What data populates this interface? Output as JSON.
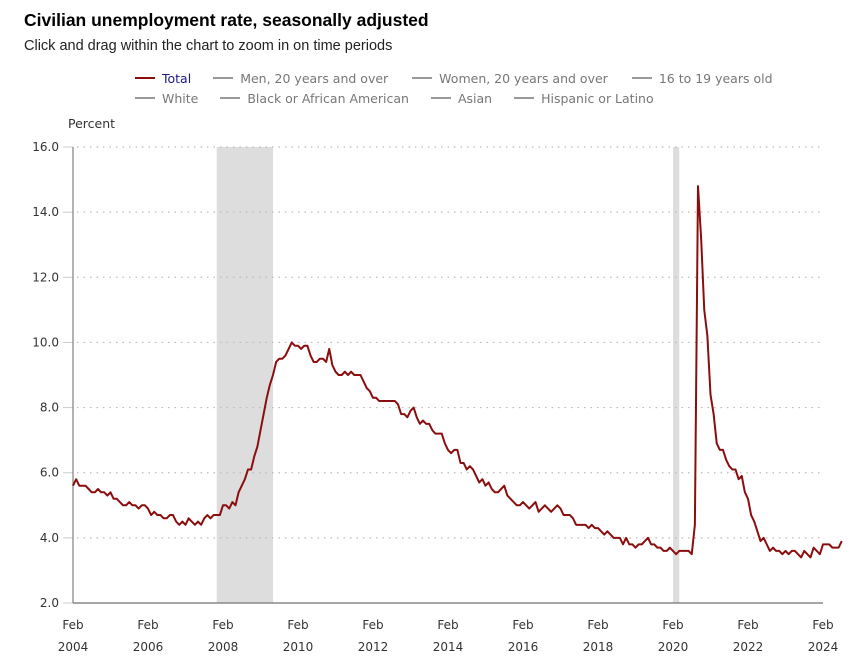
{
  "header": {
    "title": "Civilian unemployment rate, seasonally adjusted",
    "subtitle": "Click and drag within the chart to zoom in on time periods"
  },
  "legend": {
    "rows": [
      [
        {
          "label": "Total",
          "color": "#8b0e0e",
          "active": true
        },
        {
          "label": "Men, 20 years and over",
          "color": "#999999",
          "active": false
        },
        {
          "label": "Women, 20 years and over",
          "color": "#999999",
          "active": false
        },
        {
          "label": "16 to 19 years old",
          "color": "#999999",
          "active": false
        }
      ],
      [
        {
          "label": "White",
          "color": "#999999",
          "active": false
        },
        {
          "label": "Black or African American",
          "color": "#999999",
          "active": false
        },
        {
          "label": "Asian",
          "color": "#999999",
          "active": false
        },
        {
          "label": "Hispanic or Latino",
          "color": "#999999",
          "active": false
        }
      ]
    ]
  },
  "chart_data": {
    "type": "line",
    "title": "Civilian unemployment rate, seasonally adjusted",
    "ylabel": "Percent",
    "xlabel": "",
    "ylim": [
      2.0,
      16.0
    ],
    "yticks": [
      "2.0",
      "4.0",
      "6.0",
      "8.0",
      "10.0",
      "12.0",
      "14.0",
      "16.0"
    ],
    "xlim": [
      "2004-02",
      "2024-02"
    ],
    "xticks": [
      {
        "month": "Feb",
        "year": "2004"
      },
      {
        "month": "Feb",
        "year": "2006"
      },
      {
        "month": "Feb",
        "year": "2008"
      },
      {
        "month": "Feb",
        "year": "2010"
      },
      {
        "month": "Feb",
        "year": "2012"
      },
      {
        "month": "Feb",
        "year": "2014"
      },
      {
        "month": "Feb",
        "year": "2016"
      },
      {
        "month": "Feb",
        "year": "2018"
      },
      {
        "month": "Feb",
        "year": "2020"
      },
      {
        "month": "Feb",
        "year": "2022"
      },
      {
        "month": "Feb",
        "year": "2024"
      }
    ],
    "grid": "horizontal-dotted",
    "recessions": [
      {
        "start": "2007-12",
        "end": "2009-06"
      },
      {
        "start": "2020-02",
        "end": "2020-04"
      }
    ],
    "colors": {
      "line": "#8b0e0e",
      "recession": "#dddddd",
      "grid": "#bbbbbb",
      "axis": "#888888"
    },
    "series": [
      {
        "name": "Total",
        "start": "2004-02",
        "frequency": "monthly",
        "values": [
          5.6,
          5.8,
          5.6,
          5.6,
          5.6,
          5.5,
          5.4,
          5.4,
          5.5,
          5.4,
          5.4,
          5.3,
          5.4,
          5.2,
          5.2,
          5.1,
          5.0,
          5.0,
          5.1,
          5.0,
          5.0,
          4.9,
          5.0,
          5.0,
          4.9,
          4.7,
          4.8,
          4.7,
          4.7,
          4.6,
          4.6,
          4.7,
          4.7,
          4.5,
          4.4,
          4.5,
          4.4,
          4.6,
          4.5,
          4.4,
          4.5,
          4.4,
          4.6,
          4.7,
          4.6,
          4.7,
          4.7,
          4.7,
          5.0,
          5.0,
          4.9,
          5.1,
          5.0,
          5.4,
          5.6,
          5.8,
          6.1,
          6.1,
          6.5,
          6.8,
          7.3,
          7.8,
          8.3,
          8.7,
          9.0,
          9.4,
          9.5,
          9.5,
          9.6,
          9.8,
          10.0,
          9.9,
          9.9,
          9.8,
          9.9,
          9.9,
          9.6,
          9.4,
          9.4,
          9.5,
          9.5,
          9.4,
          9.8,
          9.3,
          9.1,
          9.0,
          9.0,
          9.1,
          9.0,
          9.1,
          9.0,
          9.0,
          9.0,
          8.8,
          8.6,
          8.5,
          8.3,
          8.3,
          8.2,
          8.2,
          8.2,
          8.2,
          8.2,
          8.2,
          8.1,
          7.8,
          7.8,
          7.7,
          7.9,
          8.0,
          7.7,
          7.5,
          7.6,
          7.5,
          7.5,
          7.3,
          7.2,
          7.2,
          7.2,
          6.9,
          6.7,
          6.6,
          6.7,
          6.7,
          6.3,
          6.3,
          6.1,
          6.2,
          6.1,
          5.9,
          5.7,
          5.8,
          5.6,
          5.7,
          5.5,
          5.4,
          5.4,
          5.5,
          5.6,
          5.3,
          5.2,
          5.1,
          5.0,
          5.0,
          5.1,
          5.0,
          4.9,
          5.0,
          5.1,
          4.8,
          4.9,
          5.0,
          4.9,
          4.8,
          4.9,
          5.0,
          4.9,
          4.7,
          4.7,
          4.7,
          4.6,
          4.4,
          4.4,
          4.4,
          4.4,
          4.3,
          4.4,
          4.3,
          4.3,
          4.2,
          4.1,
          4.2,
          4.1,
          4.0,
          4.0,
          4.0,
          3.8,
          4.0,
          3.8,
          3.8,
          3.7,
          3.8,
          3.8,
          3.9,
          4.0,
          3.8,
          3.8,
          3.7,
          3.7,
          3.6,
          3.6,
          3.7,
          3.6,
          3.5,
          3.6,
          3.6,
          3.6,
          3.6,
          3.5,
          4.4,
          14.8,
          13.2,
          11.0,
          10.2,
          8.4,
          7.8,
          6.9,
          6.7,
          6.7,
          6.4,
          6.2,
          6.1,
          6.1,
          5.8,
          5.9,
          5.4,
          5.2,
          4.7,
          4.5,
          4.2,
          3.9,
          4.0,
          3.8,
          3.6,
          3.7,
          3.6,
          3.6,
          3.5,
          3.6,
          3.5,
          3.6,
          3.6,
          3.5,
          3.4,
          3.6,
          3.5,
          3.4,
          3.7,
          3.6,
          3.5,
          3.8,
          3.8,
          3.8,
          3.7,
          3.7,
          3.7,
          3.9
        ]
      }
    ]
  }
}
